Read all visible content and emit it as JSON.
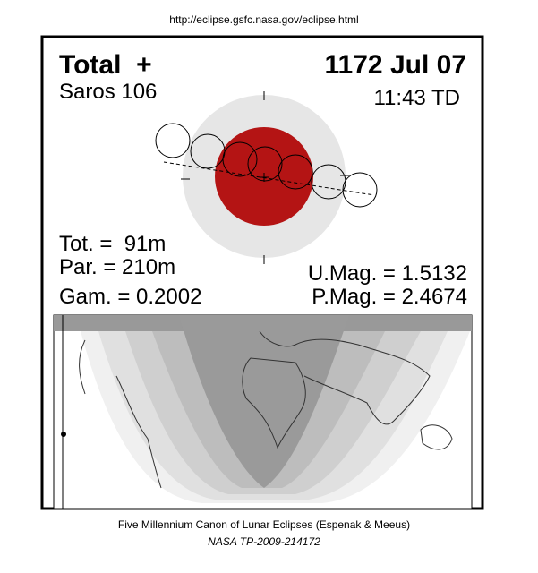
{
  "header": {
    "url": "http://eclipse.gsfc.nasa.gov/eclipse.html"
  },
  "eclipse": {
    "type": "Total  +",
    "date": "1172 Jul 07",
    "saros": "Saros 106",
    "time": "11:43 TD",
    "total_duration": "Tot. =  91m",
    "partial_duration": "Par. = 210m",
    "gamma": "Gam. = 0.2002",
    "umbral_magnitude": "U.Mag. = 1.5132",
    "penumbral_magnitude": "P.Mag. = 2.4674"
  },
  "footer": {
    "line1": "Five Millennium Canon of Lunar Eclipses (Espenak & Meeus)",
    "line2": "NASA TP-2009-214172"
  }
}
